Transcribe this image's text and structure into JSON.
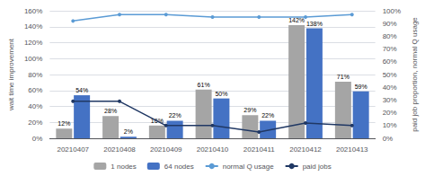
{
  "chart_data": {
    "type": "bar",
    "categories": [
      "20210407",
      "20210408",
      "20210409",
      "20210410",
      "20210411",
      "20210412",
      "20210413"
    ],
    "series": [
      {
        "name": "1 nodes",
        "type": "bar",
        "color": "#a5a5a5",
        "values": [
          12,
          28,
          16,
          61,
          29,
          142,
          71
        ],
        "value_labels": [
          "12%",
          "28%",
          "16%",
          "61%",
          "29%",
          "142%",
          "71%"
        ],
        "data_labels": true
      },
      {
        "name": "64 nodes",
        "type": "bar",
        "color": "#4472c4",
        "values": [
          54,
          2,
          22,
          50,
          22,
          138,
          59
        ],
        "value_labels": [
          "54%",
          "2%",
          "22%",
          "50%",
          "22%",
          "138%",
          "59%"
        ],
        "data_labels": true
      },
      {
        "name": "normal Q usage",
        "type": "line",
        "axis": "y2",
        "color": "#5b9bd5",
        "marker": "circle",
        "values": [
          92,
          97,
          97,
          95,
          95,
          95,
          97
        ]
      },
      {
        "name": "paid jobs",
        "type": "line",
        "axis": "y2",
        "color": "#203864",
        "marker": "circle",
        "values": [
          29,
          29,
          10,
          10,
          5,
          12,
          10
        ]
      }
    ],
    "ylabel": "wait time improvement",
    "y2label": "paid job proportion, normal Q usage",
    "ylim": [
      0,
      160
    ],
    "yticks": [
      {
        "value": 0,
        "label": "0%"
      },
      {
        "value": 20,
        "label": "20%"
      },
      {
        "value": 40,
        "label": "40%"
      },
      {
        "value": 60,
        "label": "60%"
      },
      {
        "value": 80,
        "label": "80%"
      },
      {
        "value": 100,
        "label": "100%"
      },
      {
        "value": 120,
        "label": "120%"
      },
      {
        "value": 140,
        "label": "140%"
      },
      {
        "value": 160,
        "label": "160%"
      }
    ],
    "y2lim": [
      0,
      100
    ],
    "y2ticks": [
      {
        "value": 0,
        "label": "0%"
      },
      {
        "value": 10,
        "label": "10%"
      },
      {
        "value": 20,
        "label": "20%"
      },
      {
        "value": 30,
        "label": "30%"
      },
      {
        "value": 40,
        "label": "40%"
      },
      {
        "value": 50,
        "label": "50%"
      },
      {
        "value": 60,
        "label": "60%"
      },
      {
        "value": 70,
        "label": "70%"
      },
      {
        "value": 80,
        "label": "80%"
      },
      {
        "value": 90,
        "label": "90%"
      },
      {
        "value": 100,
        "label": "100%"
      }
    ],
    "grid": true,
    "legend": "bottom"
  }
}
